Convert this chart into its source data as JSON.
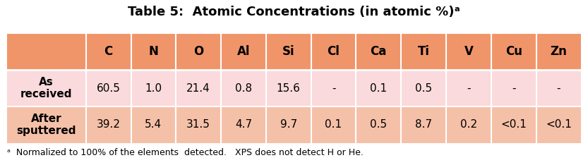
{
  "title": "Table 5:  Atomic Concentrations (in atomic %)ᵃ",
  "columns": [
    "",
    "C",
    "N",
    "O",
    "Al",
    "Si",
    "Cl",
    "Ca",
    "Ti",
    "V",
    "Cu",
    "Zn"
  ],
  "rows": [
    [
      "As\nreceived",
      "60.5",
      "1.0",
      "21.4",
      "0.8",
      "15.6",
      "-",
      "0.1",
      "0.5",
      "-",
      "-",
      "-"
    ],
    [
      "After\nsputtered",
      "39.2",
      "5.4",
      "31.5",
      "4.7",
      "9.7",
      "0.1",
      "0.5",
      "8.7",
      "0.2",
      "<0.1",
      "<0.1"
    ]
  ],
  "footnote": "ᵃ  Normalized to 100% of the elements  detected.   XPS does not detect H or He.",
  "header_color": "#F0956A",
  "row_color_light": "#FADADC",
  "row_color_dark": "#F5C0A8",
  "title_fontsize": 13,
  "header_fontsize": 12,
  "cell_fontsize": 11,
  "footnote_fontsize": 9,
  "background_color": "#FFFFFF"
}
